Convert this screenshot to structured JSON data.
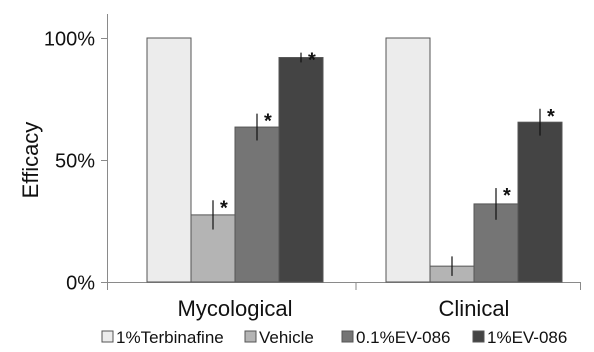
{
  "chart_data": {
    "type": "bar",
    "ylabel": "Efficacy",
    "ylim": [
      0,
      100
    ],
    "yticks": [
      {
        "value": 0,
        "label": "0%"
      },
      {
        "value": 50,
        "label": "50%"
      },
      {
        "value": 100,
        "label": "100%"
      }
    ],
    "categories": [
      "Mycological",
      "Clinical"
    ],
    "series": [
      {
        "name": "1%Terbinafine",
        "color": "#ececec",
        "values": [
          100,
          100
        ],
        "errors": [
          0,
          0
        ],
        "significant": [
          false,
          false
        ]
      },
      {
        "name": "Vehicle",
        "color": "#b4b4b4",
        "values": [
          27.5,
          6.5
        ],
        "errors": [
          6,
          4
        ],
        "significant": [
          true,
          false
        ]
      },
      {
        "name": "0.1%EV-086",
        "color": "#757575",
        "values": [
          63.5,
          32
        ],
        "errors": [
          5.5,
          6.5
        ],
        "significant": [
          true,
          true
        ]
      },
      {
        "name": "1%EV-086",
        "color": "#444444",
        "values": [
          92,
          65.5
        ],
        "errors": [
          2,
          5.5
        ],
        "significant": [
          true,
          true
        ]
      }
    ],
    "significance_marker": "*",
    "legend_position": "bottom",
    "grid": false
  }
}
